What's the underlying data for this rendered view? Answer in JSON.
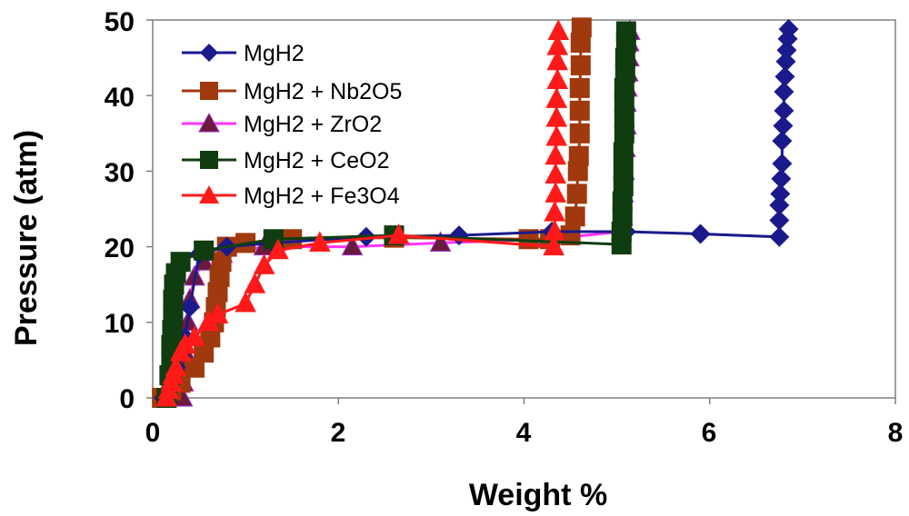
{
  "chart_data": {
    "type": "scatter",
    "xlabel": "Weight %",
    "ylabel": "Pressure (atm)",
    "xlim": [
      0,
      8
    ],
    "ylim": [
      0,
      50
    ],
    "xticks": [
      "0",
      "2",
      "4",
      "6",
      "8"
    ],
    "yticks": [
      "0",
      "10",
      "20",
      "30",
      "40",
      "50"
    ],
    "legend_position": "top-left",
    "series": [
      {
        "name": "MgH2",
        "color": "#1a1a8c",
        "marker": "diamond",
        "x": [
          0.12,
          0.2,
          0.25,
          0.3,
          0.35,
          0.4,
          0.5,
          0.8,
          1.3,
          2.3,
          3.3,
          4.3,
          5.1,
          5.9,
          6.75,
          6.75,
          6.75,
          6.76,
          6.77,
          6.78,
          6.78,
          6.79,
          6.8,
          6.8,
          6.81,
          6.82,
          6.83,
          6.84,
          6.85
        ],
        "y": [
          0,
          2,
          4,
          6,
          8,
          12,
          19,
          20,
          20.5,
          21.3,
          21.5,
          22,
          22,
          21.7,
          21.3,
          23.5,
          25.5,
          27,
          29,
          31,
          34,
          36,
          38,
          40.5,
          42.5,
          44.5,
          46,
          47.5,
          48.8
        ]
      },
      {
        "name": "MgH2 + Nb2O5",
        "color": "#a0390e",
        "marker": "square",
        "x": [
          0.1,
          0.2,
          0.3,
          0.45,
          0.55,
          0.62,
          0.66,
          0.68,
          0.7,
          0.72,
          0.74,
          0.8,
          1.0,
          1.5,
          2.6,
          4.05,
          4.28,
          4.5,
          4.55,
          4.57,
          4.58,
          4.59,
          4.6,
          4.6,
          4.6,
          4.61,
          4.61,
          4.62
        ],
        "y": [
          0,
          1,
          2,
          4,
          6,
          8,
          10,
          12,
          14,
          16,
          18,
          20,
          20.5,
          21,
          21.2,
          21,
          21,
          21.5,
          24,
          27,
          30,
          32,
          35,
          38,
          41,
          44,
          47,
          49
        ]
      },
      {
        "name": "MgH2 + ZrO2",
        "color": "#6b1a3e",
        "marker": "triangle",
        "x": [
          0.32,
          0.33,
          0.34,
          0.35,
          0.36,
          0.38,
          0.4,
          0.45,
          0.55,
          0.75,
          1.2,
          2.15,
          3.1,
          4.25,
          5.05,
          5.06,
          5.07,
          5.08,
          5.09,
          5.1,
          5.1,
          5.11,
          5.12,
          5.13,
          5.13,
          5.14
        ],
        "y": [
          0,
          2,
          4,
          6,
          8,
          10,
          13,
          16,
          18,
          19,
          20,
          20,
          20.5,
          21,
          22,
          24,
          27,
          30,
          33,
          36,
          39,
          41,
          43,
          45,
          47,
          48.5
        ]
      },
      {
        "name": "MgH2 + CeO2",
        "color": "#0f3d0f",
        "marker": "square",
        "x": [
          0.15,
          0.18,
          0.2,
          0.2,
          0.21,
          0.22,
          0.22,
          0.23,
          0.25,
          0.3,
          0.55,
          1.3,
          2.6,
          5.05,
          5.05,
          5.06,
          5.06,
          5.07,
          5.07,
          5.07,
          5.08,
          5.08,
          5.08,
          5.08,
          5.09,
          5.09,
          5.1,
          5.1
        ],
        "y": [
          0,
          3,
          5,
          7,
          9,
          11,
          13,
          15,
          16.5,
          18,
          19.5,
          21,
          21.5,
          20.3,
          22,
          24,
          26,
          28,
          30,
          32.5,
          35,
          37,
          39,
          41,
          43,
          45,
          47,
          48.5
        ]
      },
      {
        "name": "MgH2 + Fe3O4",
        "color": "#ff1a1a",
        "marker": "triangle",
        "x": [
          0.15,
          0.17,
          0.2,
          0.22,
          0.25,
          0.3,
          0.35,
          0.45,
          0.6,
          0.7,
          1.0,
          1.1,
          1.2,
          1.35,
          1.8,
          2.65,
          4.32,
          4.33,
          4.33,
          4.34,
          4.34,
          4.34,
          4.35,
          4.35,
          4.35,
          4.36,
          4.36,
          4.36,
          4.37
        ],
        "y": [
          0,
          1,
          2,
          3,
          4,
          6,
          7,
          8,
          10,
          11,
          12.5,
          15,
          17.5,
          19.5,
          20.5,
          21.5,
          20,
          22,
          24.5,
          27,
          29.5,
          32,
          34.5,
          37,
          39.5,
          42,
          44.5,
          46.5,
          48.5
        ]
      }
    ]
  }
}
